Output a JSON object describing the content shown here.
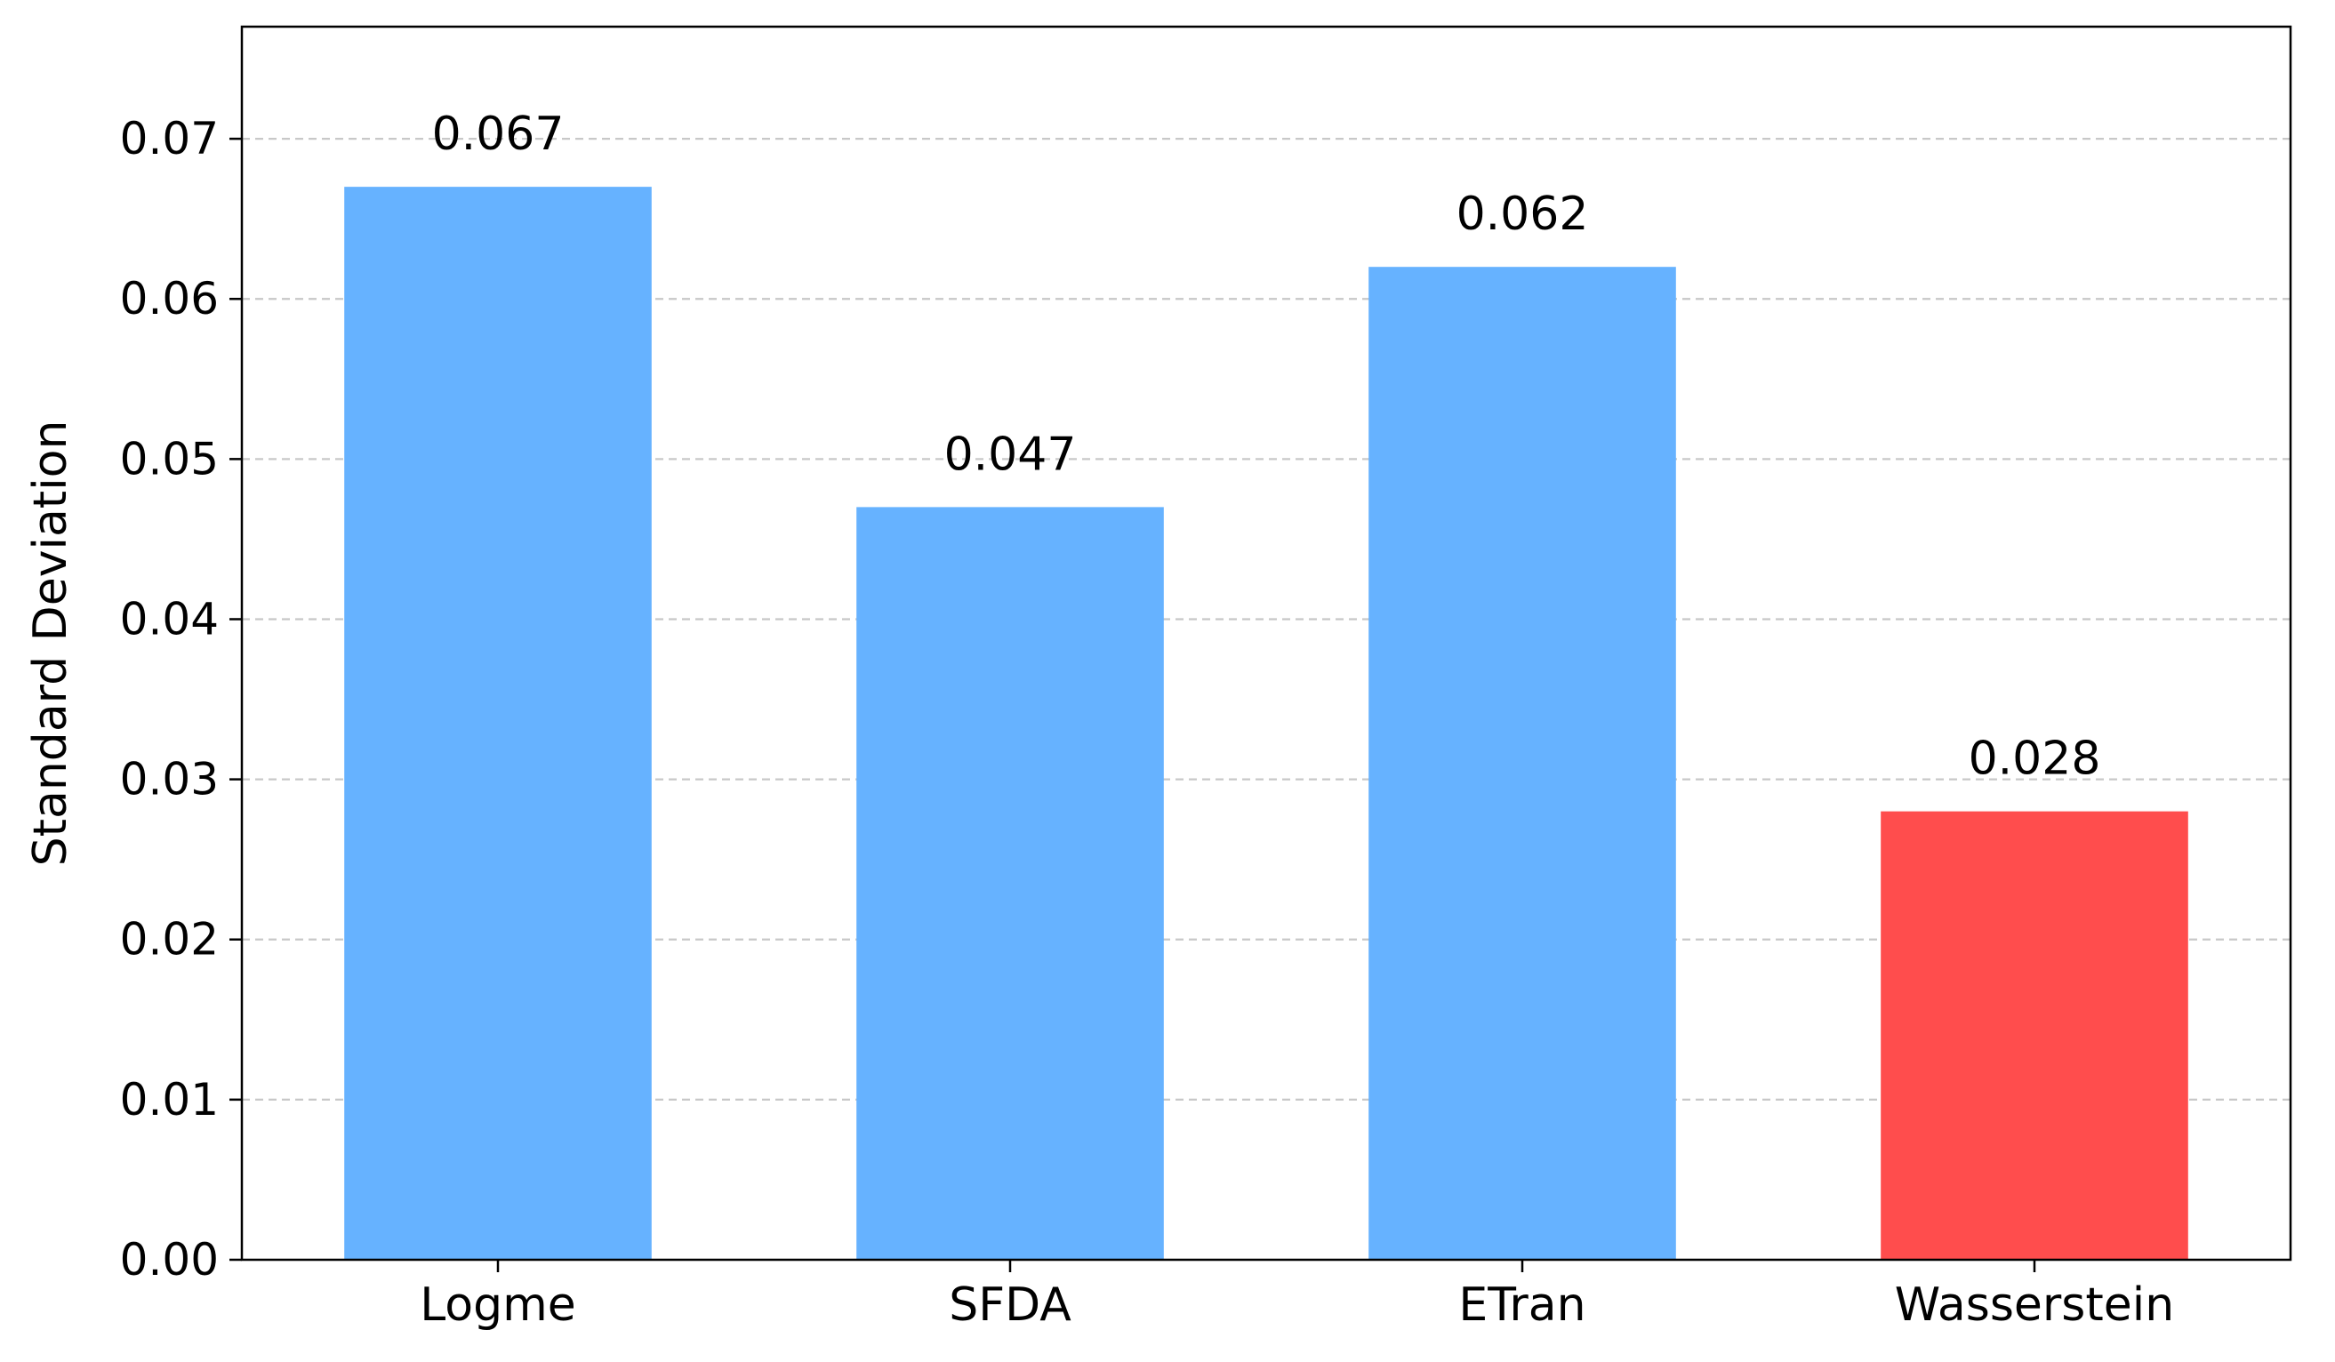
{
  "chart_data": {
    "type": "bar",
    "categories": [
      "Logme",
      "SFDA",
      "ETran",
      "Wasserstein"
    ],
    "values": [
      0.067,
      0.047,
      0.062,
      0.028
    ],
    "value_labels": [
      "0.067",
      "0.047",
      "0.062",
      "0.028"
    ],
    "bar_colors": [
      "#66b2ff",
      "#66b2ff",
      "#66b2ff",
      "#ff4d4d"
    ],
    "title": "",
    "xlabel": "",
    "ylabel": "Standard Deviation",
    "ylim": [
      0,
      0.077
    ],
    "yticks": [
      0.0,
      0.01,
      0.02,
      0.03,
      0.04,
      0.05,
      0.06,
      0.07
    ],
    "ytick_labels": [
      "0.00",
      "0.01",
      "0.02",
      "0.03",
      "0.04",
      "0.05",
      "0.06",
      "0.07"
    ],
    "grid": "y-dashed",
    "legend": "none"
  },
  "colors": {
    "grid": "#c8c8c8",
    "axis": "#000000"
  }
}
